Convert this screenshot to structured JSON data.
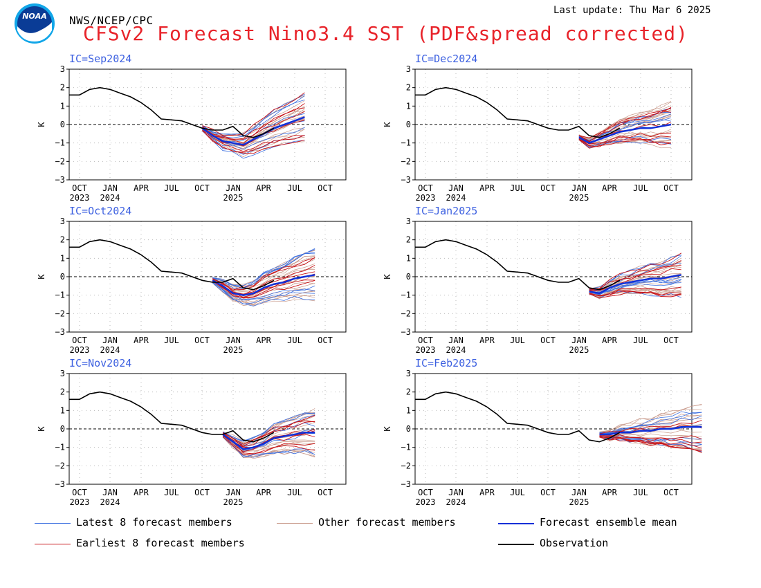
{
  "header": {
    "org": "NWS/NCEP/CPC",
    "title": "CFSv2 Forecast Nino3.4 SST (PDF&spread corrected)",
    "last_update": "Last update: Thu Mar 6 2025",
    "logo_text": "NOAA"
  },
  "colors": {
    "latest": "#3a6ee0",
    "other": "#c8998a",
    "mean": "#1030d8",
    "earliest": "#c81418",
    "observation": "#000000",
    "title": "#e8232a",
    "ic_label": "#3b5fe0"
  },
  "legend": [
    {
      "key": "latest",
      "label": "Latest 8 forecast members"
    },
    {
      "key": "other",
      "label": "Other forecast members"
    },
    {
      "key": "mean",
      "label": "Forecast ensemble mean"
    },
    {
      "key": "earliest",
      "label": "Earliest 8 forecast members"
    },
    {
      "key": "observation",
      "label": "Observation"
    }
  ],
  "chart_data": [
    {
      "type": "line",
      "ic_label": "IC=Sep2024",
      "ylabel": "K",
      "ylim": [
        -3,
        3
      ],
      "y_ticks": [
        3,
        2,
        1,
        0,
        -1,
        -2,
        -3
      ],
      "x_ticks": [
        "OCT",
        "JAN",
        "APR",
        "JUL",
        "OCT",
        "JAN",
        "APR",
        "JUL",
        "OCT"
      ],
      "x_years": [
        {
          "index": 0,
          "label": "2023"
        },
        {
          "index": 1,
          "label": "2024"
        },
        {
          "index": 5,
          "label": "2025"
        }
      ],
      "observation": [
        1.6,
        1.6,
        1.9,
        2.0,
        1.9,
        1.7,
        1.5,
        1.2,
        0.8,
        0.3,
        0.25,
        0.2,
        0.0,
        -0.2,
        -0.3,
        -0.3,
        -0.1,
        -0.6,
        -0.7,
        -0.5,
        -0.2
      ],
      "forecast_start": 12,
      "forecast_steps": 9,
      "ensemble_mean": [
        -0.2,
        -0.6,
        -0.9,
        -1.0,
        -1.1,
        -0.8,
        -0.5,
        -0.2,
        0.0,
        0.2,
        0.4
      ]
    },
    {
      "type": "line",
      "ic_label": "IC=Dec2024",
      "ylabel": "K",
      "ylim": [
        -3,
        3
      ],
      "y_ticks": [
        3,
        2,
        1,
        0,
        -1,
        -2,
        -3
      ],
      "x_ticks": [
        "OCT",
        "JAN",
        "APR",
        "JUL",
        "OCT",
        "JAN",
        "APR",
        "JUL",
        "OCT"
      ],
      "x_years": [
        {
          "index": 0,
          "label": "2023"
        },
        {
          "index": 1,
          "label": "2024"
        },
        {
          "index": 5,
          "label": "2025"
        }
      ],
      "observation": [
        1.6,
        1.6,
        1.9,
        2.0,
        1.9,
        1.7,
        1.5,
        1.2,
        0.8,
        0.3,
        0.25,
        0.2,
        0.0,
        -0.2,
        -0.3,
        -0.3,
        -0.1,
        -0.6,
        -0.7,
        -0.5,
        -0.2
      ],
      "forecast_start": 15,
      "forecast_steps": 9,
      "ensemble_mean": [
        -0.7,
        -1.0,
        -0.8,
        -0.6,
        -0.4,
        -0.3,
        -0.2,
        -0.2,
        -0.1,
        0.0
      ]
    },
    {
      "type": "line",
      "ic_label": "IC=Oct2024",
      "ylabel": "K",
      "ylim": [
        -3,
        3
      ],
      "y_ticks": [
        3,
        2,
        1,
        0,
        -1,
        -2,
        -3
      ],
      "x_ticks": [
        "OCT",
        "JAN",
        "APR",
        "JUL",
        "OCT",
        "JAN",
        "APR",
        "JUL",
        "OCT"
      ],
      "x_years": [
        {
          "index": 0,
          "label": "2023"
        },
        {
          "index": 1,
          "label": "2024"
        },
        {
          "index": 5,
          "label": "2025"
        }
      ],
      "observation": [
        1.6,
        1.6,
        1.9,
        2.0,
        1.9,
        1.7,
        1.5,
        1.2,
        0.8,
        0.3,
        0.25,
        0.2,
        0.0,
        -0.2,
        -0.3,
        -0.3,
        -0.1,
        -0.6,
        -0.7,
        -0.5,
        -0.2
      ],
      "forecast_start": 13,
      "forecast_steps": 9,
      "ensemble_mean": [
        -0.2,
        -0.5,
        -0.9,
        -1.0,
        -0.9,
        -0.6,
        -0.4,
        -0.3,
        -0.1,
        0.0,
        0.1
      ]
    },
    {
      "type": "line",
      "ic_label": "IC=Jan2025",
      "ylabel": "K",
      "ylim": [
        -3,
        3
      ],
      "y_ticks": [
        3,
        2,
        1,
        0,
        -1,
        -2,
        -3
      ],
      "x_ticks": [
        "OCT",
        "JAN",
        "APR",
        "JUL",
        "OCT",
        "JAN",
        "APR",
        "JUL",
        "OCT"
      ],
      "x_years": [
        {
          "index": 0,
          "label": "2023"
        },
        {
          "index": 1,
          "label": "2024"
        },
        {
          "index": 5,
          "label": "2025"
        }
      ],
      "observation": [
        1.6,
        1.6,
        1.9,
        2.0,
        1.9,
        1.7,
        1.5,
        1.2,
        0.8,
        0.3,
        0.25,
        0.2,
        0.0,
        -0.2,
        -0.3,
        -0.3,
        -0.1,
        -0.6,
        -0.7,
        -0.5,
        -0.2
      ],
      "forecast_start": 16,
      "forecast_steps": 9,
      "ensemble_mean": [
        -0.8,
        -0.9,
        -0.6,
        -0.4,
        -0.3,
        -0.2,
        -0.1,
        -0.1,
        0.0,
        0.1
      ]
    },
    {
      "type": "line",
      "ic_label": "IC=Nov2024",
      "ylabel": "K",
      "ylim": [
        -3,
        3
      ],
      "y_ticks": [
        3,
        2,
        1,
        0,
        -1,
        -2,
        -3
      ],
      "x_ticks": [
        "OCT",
        "JAN",
        "APR",
        "JUL",
        "OCT",
        "JAN",
        "APR",
        "JUL",
        "OCT"
      ],
      "x_years": [
        {
          "index": 0,
          "label": "2023"
        },
        {
          "index": 1,
          "label": "2024"
        },
        {
          "index": 5,
          "label": "2025"
        }
      ],
      "observation": [
        1.6,
        1.6,
        1.9,
        2.0,
        1.9,
        1.7,
        1.5,
        1.2,
        0.8,
        0.3,
        0.25,
        0.2,
        0.0,
        -0.2,
        -0.3,
        -0.3,
        -0.1,
        -0.6,
        -0.7,
        -0.5,
        -0.2
      ],
      "forecast_start": 14,
      "forecast_steps": 9,
      "ensemble_mean": [
        -0.3,
        -0.7,
        -1.1,
        -1.0,
        -0.8,
        -0.5,
        -0.4,
        -0.3,
        -0.2,
        -0.2
      ]
    },
    {
      "type": "line",
      "ic_label": "IC=Feb2025",
      "ylabel": "K",
      "ylim": [
        -3,
        3
      ],
      "y_ticks": [
        3,
        2,
        1,
        0,
        -1,
        -2,
        -3
      ],
      "x_ticks": [
        "OCT",
        "JAN",
        "APR",
        "JUL",
        "OCT",
        "JAN",
        "APR",
        "JUL",
        "OCT"
      ],
      "x_years": [
        {
          "index": 0,
          "label": "2023"
        },
        {
          "index": 1,
          "label": "2024"
        },
        {
          "index": 5,
          "label": "2025"
        }
      ],
      "observation": [
        1.6,
        1.6,
        1.9,
        2.0,
        1.9,
        1.7,
        1.5,
        1.2,
        0.8,
        0.3,
        0.25,
        0.2,
        0.0,
        -0.2,
        -0.3,
        -0.3,
        -0.1,
        -0.6,
        -0.7,
        -0.5,
        -0.2
      ],
      "forecast_start": 17,
      "forecast_steps": 10,
      "ensemble_mean": [
        -0.3,
        -0.3,
        -0.2,
        -0.2,
        -0.1,
        -0.1,
        0.0,
        0.0,
        0.1,
        0.1,
        0.1
      ]
    }
  ]
}
